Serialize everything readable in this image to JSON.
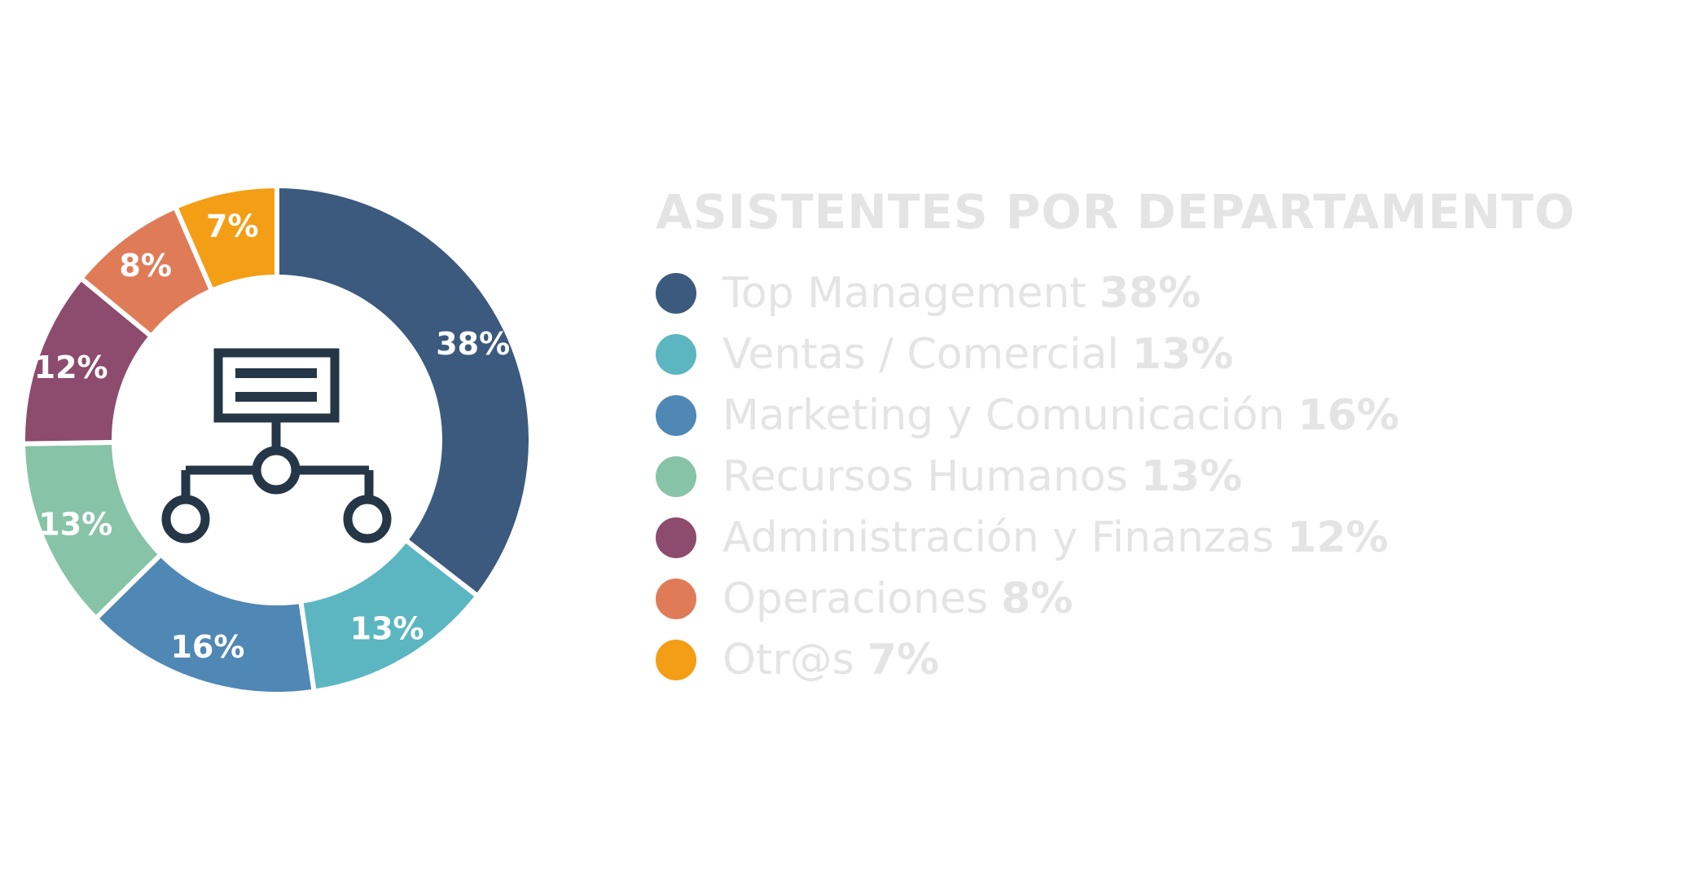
{
  "chart_data": {
    "type": "pie",
    "title": "ASISTENTES POR DEPARTAMENTO",
    "categories": [
      "Top Management",
      "Ventas / Comercial",
      "Marketing y Comunicación",
      "Recursos Humanos",
      "Administración y Finanzas",
      "Operaciones",
      "Otr@s"
    ],
    "values": [
      38,
      13,
      16,
      13,
      12,
      8,
      7
    ],
    "value_labels": [
      "38%",
      "13%",
      "16%",
      "13%",
      "12%",
      "8%",
      "7%"
    ],
    "colors": [
      "#3b5a7e",
      "#5bb6c1",
      "#4f87b5",
      "#87c3a6",
      "#8d4b6e",
      "#e07b58",
      "#f49e15"
    ],
    "legend_placement": "right",
    "center_icon": "org-chart-icon"
  }
}
